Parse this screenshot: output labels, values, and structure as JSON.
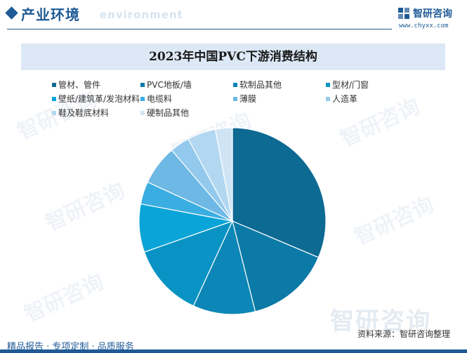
{
  "header": {
    "section_title": "产业环境",
    "section_subtitle": "environment",
    "brand_name": "智研咨询",
    "brand_url": "www.chyxx.com"
  },
  "watermark": "智研咨询",
  "colors": {
    "brand": "#1f5a96",
    "title_bar": "#dce8f5"
  },
  "chart_data": {
    "type": "pie",
    "title": "2023年中国PVC下游消费结构",
    "legend_position": "top",
    "series": [
      {
        "name": "管材、管件",
        "value": 32.0,
        "color": "#0d6a92"
      },
      {
        "name": "PVC地板/墙",
        "value": 15.0,
        "color": "#0c7aa6"
      },
      {
        "name": "软制品其他",
        "value": 11.0,
        "color": "#0b86b6"
      },
      {
        "name": "型材/门窗",
        "value": 13.0,
        "color": "#0893c4"
      },
      {
        "name": "壁纸/建筑革/发泡材料",
        "value": 8.5,
        "color": "#0aa4d8"
      },
      {
        "name": "电缆料",
        "value": 4.0,
        "color": "#3aaee0"
      },
      {
        "name": "薄膜",
        "value": 7.0,
        "color": "#6db8e4"
      },
      {
        "name": "人造革",
        "value": 3.5,
        "color": "#93c9ec"
      },
      {
        "name": "鞋及鞋底材料",
        "value": 5.0,
        "color": "#b2d7f1"
      },
      {
        "name": "硬制品其他",
        "value": 3.0,
        "color": "#cfe5f6"
      }
    ]
  },
  "footer": {
    "left": "精品报告 · 专项定制 · 品质服务",
    "source": "资料来源：智研咨询整理"
  }
}
